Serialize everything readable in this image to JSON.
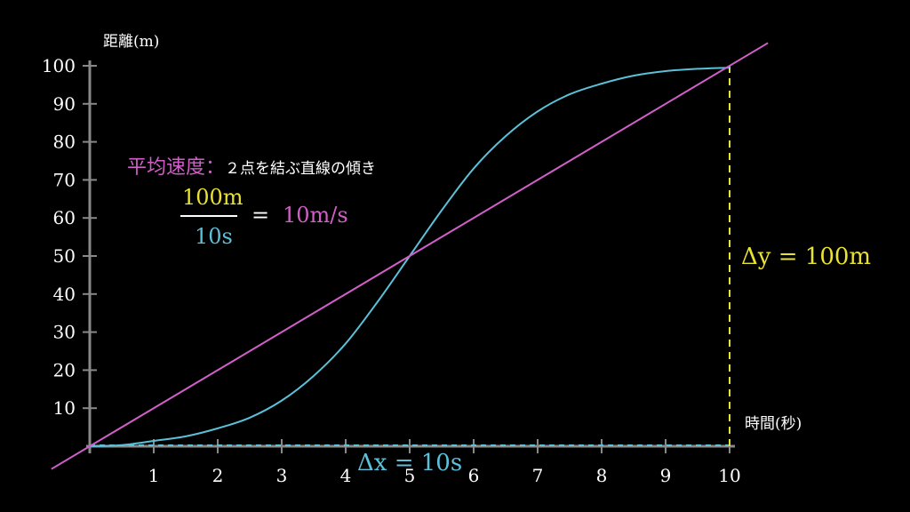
{
  "chart_data": {
    "type": "line",
    "title": "",
    "xlabel": "時間(秒)",
    "ylabel": "距離(m)",
    "xlim": [
      0,
      10
    ],
    "ylim": [
      0,
      100
    ],
    "x_ticks": [
      "1",
      "2",
      "3",
      "4",
      "5",
      "6",
      "7",
      "8",
      "9",
      "10"
    ],
    "y_ticks": [
      "10",
      "20",
      "30",
      "40",
      "50",
      "60",
      "70",
      "80",
      "90",
      "100"
    ],
    "series": [
      {
        "color": "#5bc0d8",
        "x": [
          0,
          0.5,
          1,
          1.5,
          2,
          2.5,
          3,
          3.5,
          4,
          4.5,
          5,
          5.5,
          6,
          6.5,
          7,
          7.5,
          8,
          8.5,
          9,
          9.5,
          10
        ],
        "y": [
          0,
          0.3,
          1.4,
          2.6,
          4.7,
          7.5,
          12,
          18.5,
          27,
          38,
          50,
          62,
          73,
          81.5,
          88,
          92.5,
          95.3,
          97.4,
          98.6,
          99.2,
          99.5
        ]
      },
      {
        "color": "#d05fc8",
        "x": [
          -0.6,
          10.6
        ],
        "y": [
          -6,
          106
        ]
      }
    ],
    "annotations": {
      "avg_title_head": "平均速度：",
      "avg_title_desc": "２点を結ぶ直線の傾き",
      "numerator": "100m",
      "denominator": "10s",
      "equals": "=",
      "result": "10m/s",
      "delta_y": "Δy = 100m",
      "delta_x": "Δx = 10s",
      "delta_y_color": "#e8e330",
      "delta_x_color": "#5bc0d8"
    }
  }
}
